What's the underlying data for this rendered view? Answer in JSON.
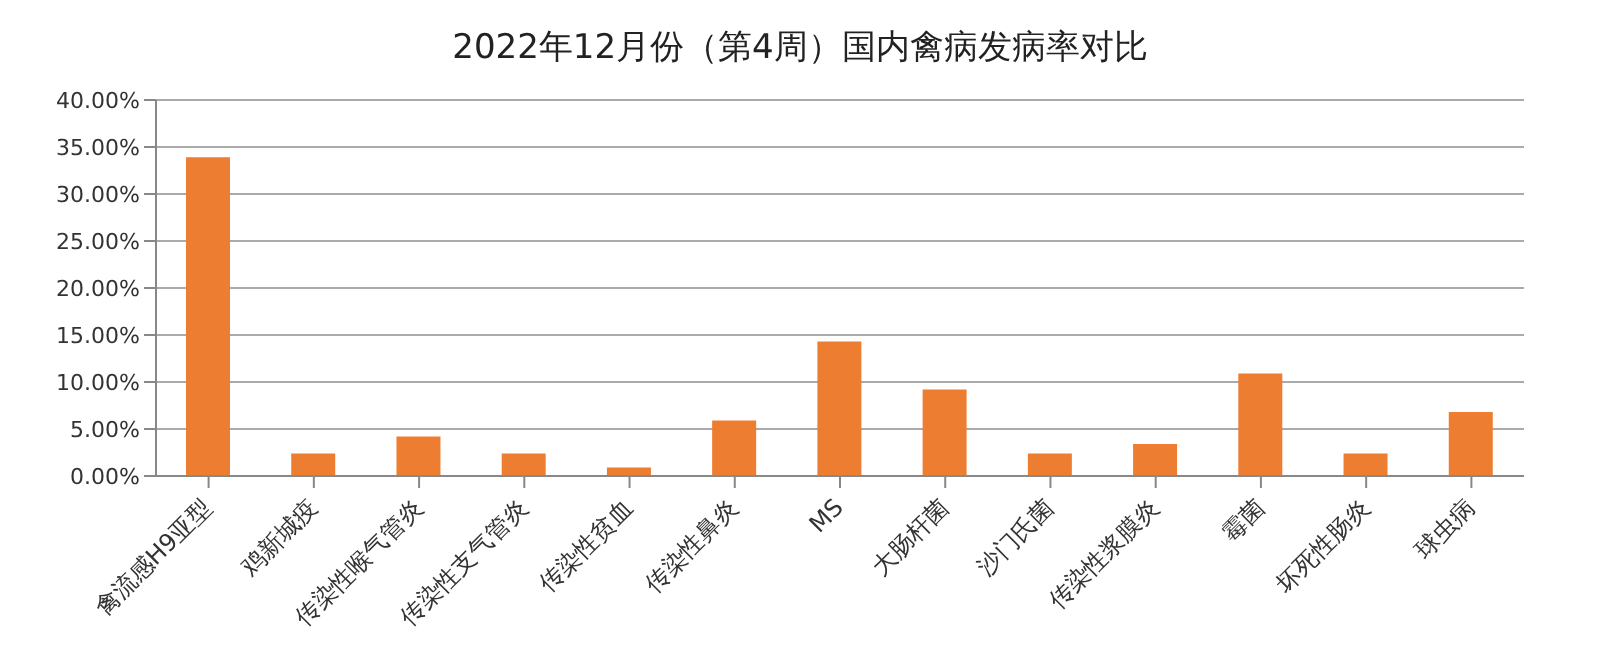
{
  "chart_data": {
    "type": "bar",
    "title": "2022年12月份（第4周）国内禽病发病率对比",
    "categories": [
      "禽流感H9亚型",
      "鸡新城疫",
      "传染性喉气管炎",
      "传染性支气管炎",
      "传染性贫血",
      "传染性鼻炎",
      "MS",
      "大肠杆菌",
      "沙门氏菌",
      "传染性浆膜炎",
      "霉菌",
      "坏死性肠炎",
      "球虫病"
    ],
    "values": [
      33.9,
      2.4,
      4.2,
      2.4,
      0.9,
      5.9,
      14.3,
      9.2,
      2.4,
      3.4,
      10.9,
      2.4,
      6.8
    ],
    "color": "#ed7d31",
    "ylim": [
      0,
      40
    ],
    "yticks": [
      {
        "value": 0,
        "label": "0.00%"
      },
      {
        "value": 5,
        "label": "5.00%"
      },
      {
        "value": 10,
        "label": "10.00%"
      },
      {
        "value": 15,
        "label": "15.00%"
      },
      {
        "value": 20,
        "label": "20.00%"
      },
      {
        "value": 25,
        "label": "25.00%"
      },
      {
        "value": 30,
        "label": "30.00%"
      },
      {
        "value": 35,
        "label": "35.00%"
      },
      {
        "value": 40,
        "label": "40.00%"
      }
    ],
    "grid": "y",
    "legend": false
  }
}
